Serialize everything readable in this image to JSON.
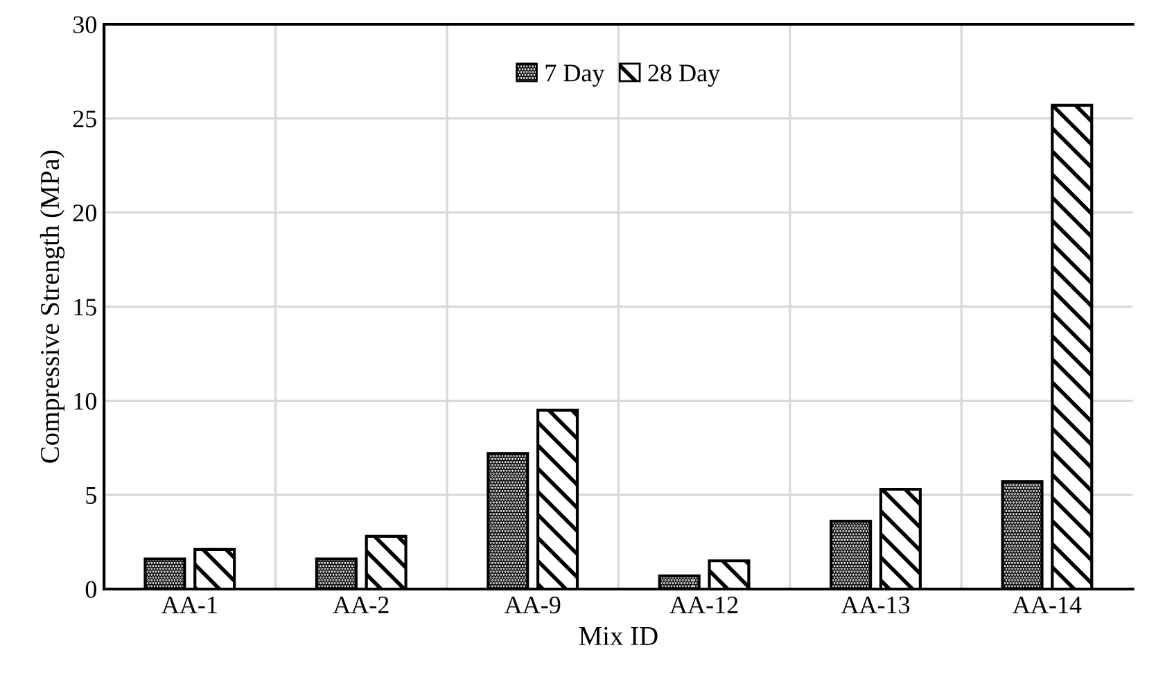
{
  "chart_data": {
    "type": "bar",
    "xlabel": "Mix ID",
    "ylabel": "Compressive Strength (MPa)",
    "categories": [
      "AA-1",
      "AA-2",
      "AA-9",
      "AA-12",
      "AA-13",
      "AA-14"
    ],
    "series": [
      {
        "name": "7 Day",
        "color": "#000000",
        "values": [
          1.6,
          1.6,
          7.2,
          0.7,
          3.6,
          5.7
        ]
      },
      {
        "name": "28 Day",
        "color": "#000000",
        "values": [
          2.1,
          2.8,
          9.5,
          1.5,
          5.3,
          25.7
        ]
      }
    ],
    "ylim": [
      0,
      30
    ],
    "yticks": [
      0,
      5,
      10,
      15,
      20,
      25,
      30
    ],
    "grid": true,
    "legend": "top"
  }
}
